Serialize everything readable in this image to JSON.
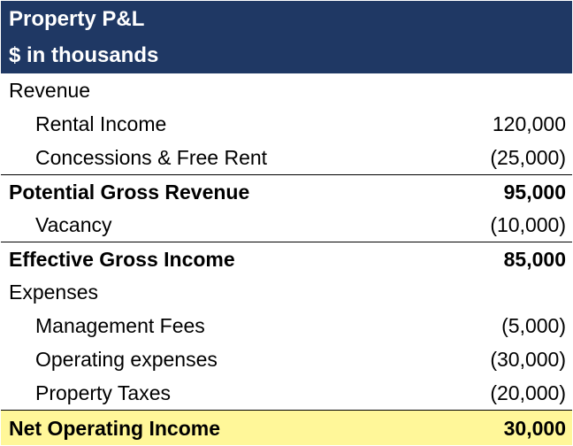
{
  "header": {
    "title": "Property P&L",
    "subtitle": "$ in thousands"
  },
  "rows": [
    {
      "label": "Revenue",
      "value": ""
    },
    {
      "label": "Rental Income",
      "value": "120,000"
    },
    {
      "label": "Concessions & Free Rent",
      "value": "(25,000)"
    },
    {
      "label": "Potential Gross Revenue",
      "value": "95,000"
    },
    {
      "label": "Vacancy",
      "value": "(10,000)"
    },
    {
      "label": "Effective Gross Income",
      "value": "85,000"
    },
    {
      "label": "Expenses",
      "value": ""
    },
    {
      "label": "Management Fees",
      "value": "(5,000)"
    },
    {
      "label": "Operating expenses",
      "value": "(30,000)"
    },
    {
      "label": "Property Taxes",
      "value": "(20,000)"
    },
    {
      "label": "Net Operating Income",
      "value": "30,000"
    }
  ],
  "colors": {
    "header_background": "#1f3864",
    "header_text": "#ffffff",
    "total_highlight": "#fff799"
  }
}
